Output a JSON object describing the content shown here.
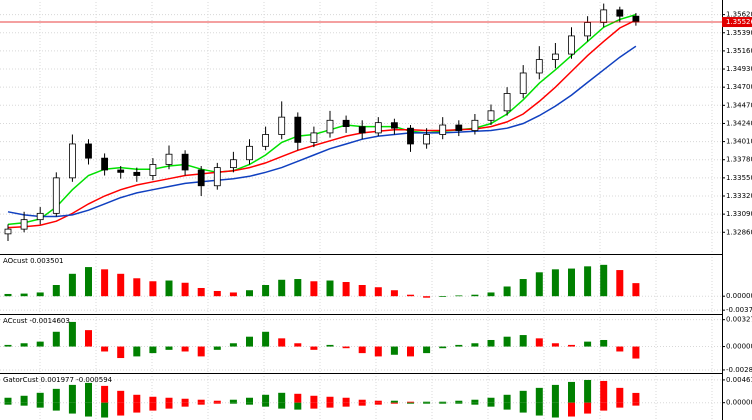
{
  "chart_data": [
    {
      "type": "candlestick",
      "open": [
        1.3284,
        1.329,
        1.3302,
        1.331,
        1.3355,
        1.3398,
        1.338,
        1.3365,
        1.3362,
        1.3358,
        1.3372,
        1.3385,
        1.3365,
        1.3345,
        1.3368,
        1.3378,
        1.3395,
        1.341,
        1.3432,
        1.34,
        1.3412,
        1.3428,
        1.342,
        1.3412,
        1.3425,
        1.3418,
        1.3398,
        1.341,
        1.3422,
        1.3415,
        1.3428,
        1.344,
        1.3462,
        1.3488,
        1.3505,
        1.3512,
        1.3535,
        1.3552,
        1.3568,
        1.356
      ],
      "high": [
        1.3296,
        1.3312,
        1.3318,
        1.3362,
        1.341,
        1.3404,
        1.3386,
        1.337,
        1.3368,
        1.338,
        1.3396,
        1.339,
        1.337,
        1.3374,
        1.3388,
        1.3404,
        1.342,
        1.3452,
        1.3438,
        1.342,
        1.344,
        1.3434,
        1.3428,
        1.3432,
        1.343,
        1.3422,
        1.3418,
        1.3432,
        1.3428,
        1.3436,
        1.3448,
        1.347,
        1.3498,
        1.3522,
        1.3526,
        1.3546,
        1.356,
        1.3576,
        1.3572,
        1.3564
      ],
      "low": [
        1.3275,
        1.3286,
        1.3296,
        1.3306,
        1.335,
        1.3372,
        1.3358,
        1.3354,
        1.335,
        1.3352,
        1.3366,
        1.3358,
        1.3332,
        1.334,
        1.3362,
        1.3372,
        1.339,
        1.3404,
        1.339,
        1.3394,
        1.3406,
        1.3412,
        1.3404,
        1.3408,
        1.341,
        1.3388,
        1.3392,
        1.3404,
        1.3408,
        1.341,
        1.3422,
        1.3434,
        1.3456,
        1.348,
        1.3494,
        1.3506,
        1.3528,
        1.3546,
        1.3552,
        1.3548
      ],
      "close": [
        1.329,
        1.3302,
        1.331,
        1.3355,
        1.3398,
        1.338,
        1.3365,
        1.3362,
        1.3358,
        1.3372,
        1.3385,
        1.3365,
        1.3345,
        1.3368,
        1.3378,
        1.3395,
        1.341,
        1.3432,
        1.34,
        1.3412,
        1.3428,
        1.342,
        1.3412,
        1.3425,
        1.3418,
        1.3398,
        1.341,
        1.3422,
        1.3415,
        1.3428,
        1.344,
        1.3462,
        1.3488,
        1.3505,
        1.3512,
        1.3535,
        1.3552,
        1.3568,
        1.356,
        1.35526
      ],
      "overlays": [
        {
          "color": "#00e000",
          "values": [
            1.3296,
            1.3298,
            1.3303,
            1.3318,
            1.334,
            1.3358,
            1.3366,
            1.3368,
            1.3366,
            1.3366,
            1.337,
            1.3372,
            1.3366,
            1.3362,
            1.3364,
            1.3372,
            1.3384,
            1.34,
            1.3408,
            1.341,
            1.3416,
            1.3422,
            1.342,
            1.342,
            1.342,
            1.3414,
            1.3412,
            1.3414,
            1.3416,
            1.3418,
            1.3424,
            1.3436,
            1.3454,
            1.3475,
            1.3492,
            1.351,
            1.3528,
            1.3546,
            1.3556,
            1.3562
          ]
        },
        {
          "color": "#ff0000",
          "values": [
            1.3292,
            1.3293,
            1.3295,
            1.33,
            1.331,
            1.3322,
            1.3332,
            1.334,
            1.3346,
            1.335,
            1.3354,
            1.3358,
            1.336,
            1.3362,
            1.3364,
            1.3368,
            1.3374,
            1.3382,
            1.339,
            1.3396,
            1.3402,
            1.3408,
            1.3412,
            1.3414,
            1.3416,
            1.3416,
            1.3415,
            1.3415,
            1.3416,
            1.3417,
            1.342,
            1.3426,
            1.3436,
            1.3452,
            1.347,
            1.349,
            1.351,
            1.3528,
            1.3545,
            1.3555
          ]
        },
        {
          "color": "#1040c0",
          "values": [
            1.3312,
            1.3308,
            1.3306,
            1.3306,
            1.3308,
            1.3314,
            1.3322,
            1.333,
            1.3336,
            1.334,
            1.3344,
            1.3348,
            1.335,
            1.3352,
            1.3354,
            1.3357,
            1.3362,
            1.3368,
            1.3376,
            1.3384,
            1.3392,
            1.3398,
            1.3404,
            1.3408,
            1.341,
            1.3412,
            1.3412,
            1.3412,
            1.3413,
            1.3414,
            1.3415,
            1.3418,
            1.3424,
            1.3434,
            1.3446,
            1.346,
            1.3476,
            1.3492,
            1.3508,
            1.3522
          ]
        }
      ],
      "current_price": 1.35526,
      "ylim": [
        1.3261,
        1.3578
      ],
      "yticks": [
        {
          "value": 1.3562,
          "label": "1.35620"
        },
        {
          "value": 1.3539,
          "label": "1.35390"
        },
        {
          "value": 1.3516,
          "label": "1.35160"
        },
        {
          "value": 1.3493,
          "label": "1.34930"
        },
        {
          "value": 1.347,
          "label": "1.34700"
        },
        {
          "value": 1.3447,
          "label": "1.34470"
        },
        {
          "value": 1.3424,
          "label": "1.34240"
        },
        {
          "value": 1.3401,
          "label": "1.34010"
        },
        {
          "value": 1.3378,
          "label": "1.33780"
        },
        {
          "value": 1.3355,
          "label": "1.33550"
        },
        {
          "value": 1.3332,
          "label": "1.33320"
        },
        {
          "value": 1.3309,
          "label": "1.33090"
        },
        {
          "value": 1.3286,
          "label": "1.32860"
        }
      ],
      "grid": true
    },
    {
      "type": "bar",
      "title": "AOcust 0.003501",
      "values": [
        0.0006,
        0.0007,
        0.001,
        0.003,
        0.006,
        0.0078,
        0.0072,
        0.006,
        0.0048,
        0.004,
        0.0042,
        0.0036,
        0.0022,
        0.0014,
        0.001,
        0.0016,
        0.003,
        0.0044,
        0.0046,
        0.004,
        0.0042,
        0.0038,
        0.003,
        0.0024,
        0.0016,
        0.0004,
        -0.0004,
        -0.0002,
        0.0002,
        0.0004,
        0.001,
        0.0026,
        0.0046,
        0.0064,
        0.0072,
        0.0074,
        0.008,
        0.0084,
        0.007,
        0.0035
      ],
      "up_color": "#008000",
      "down_color": "#ff0000",
      "ylim": [
        -0.0045,
        0.0105
      ],
      "yticks": [
        {
          "value": 0,
          "label": "0.000000"
        },
        -0.003739
      ],
      "grid": true
    },
    {
      "type": "bar",
      "title": "ACcust -0.0014603",
      "values": [
        0.0002,
        0.0004,
        0.0006,
        0.0018,
        0.003,
        0.002,
        -0.0006,
        -0.0014,
        -0.0012,
        -0.0008,
        -0.0004,
        -0.0006,
        -0.0012,
        -0.0004,
        0.0004,
        0.0012,
        0.0018,
        0.001,
        0.0004,
        -0.0004,
        0.0002,
        -0.0002,
        -0.0008,
        -0.0012,
        -0.001,
        -0.0012,
        -0.0008,
        -0.0002,
        0.0002,
        0.0004,
        0.0008,
        0.0012,
        0.0014,
        0.001,
        0.0004,
        0.0002,
        0.0006,
        0.0008,
        -0.0006,
        -0.00146
      ],
      "up_color": "#008000",
      "down_color": "#ff0000",
      "ylim": [
        -0.0031,
        0.0036
      ],
      "yticks": [
        0.0032754,
        {
          "value": 0,
          "label": "0.000000"
        },
        -0.0028506
      ],
      "grid": true
    },
    {
      "type": "gator",
      "title": "GatorCust 0.001977 -0.000594",
      "series": [
        {
          "values": [
            0.001,
            0.0014,
            0.002,
            0.0028,
            0.0036,
            0.004,
            0.0034,
            0.0024,
            0.0016,
            0.0012,
            0.001,
            0.0008,
            0.0006,
            0.0004,
            0.0006,
            0.001,
            0.0016,
            0.002,
            0.0018,
            0.0014,
            0.0012,
            0.001,
            0.0006,
            0.0004,
            0.0004,
            0.0002,
            0.0002,
            0.0002,
            0.0004,
            0.0006,
            0.001,
            0.0016,
            0.0024,
            0.003,
            0.0036,
            0.0042,
            0.0046,
            0.0044,
            0.003,
            0.001977
          ]
        },
        {
          "values": [
            -0.0004,
            -0.0006,
            -0.001,
            -0.0016,
            -0.0022,
            -0.0028,
            -0.003,
            -0.0026,
            -0.002,
            -0.0016,
            -0.0012,
            -0.0008,
            -0.0004,
            -0.0002,
            -0.0002,
            -0.0004,
            -0.0008,
            -0.0012,
            -0.0014,
            -0.0012,
            -0.001,
            -0.0008,
            -0.0006,
            -0.0004,
            -0.0002,
            -0.0002,
            -0.0002,
            -0.0002,
            -0.0002,
            -0.0004,
            -0.0008,
            -0.0014,
            -0.002,
            -0.0026,
            -0.003,
            -0.0028,
            -0.0022,
            -0.0016,
            -0.001,
            -0.000594
          ]
        }
      ],
      "up_color": "#008000",
      "down_color": "#ff0000",
      "ylim": [
        -0.0033,
        0.0054
      ],
      "yticks": [
        {
          "value": 0.00461,
          "label": "0.004610"
        },
        {
          "value": 0,
          "label": "0.000000"
        }
      ],
      "grid": true
    }
  ]
}
